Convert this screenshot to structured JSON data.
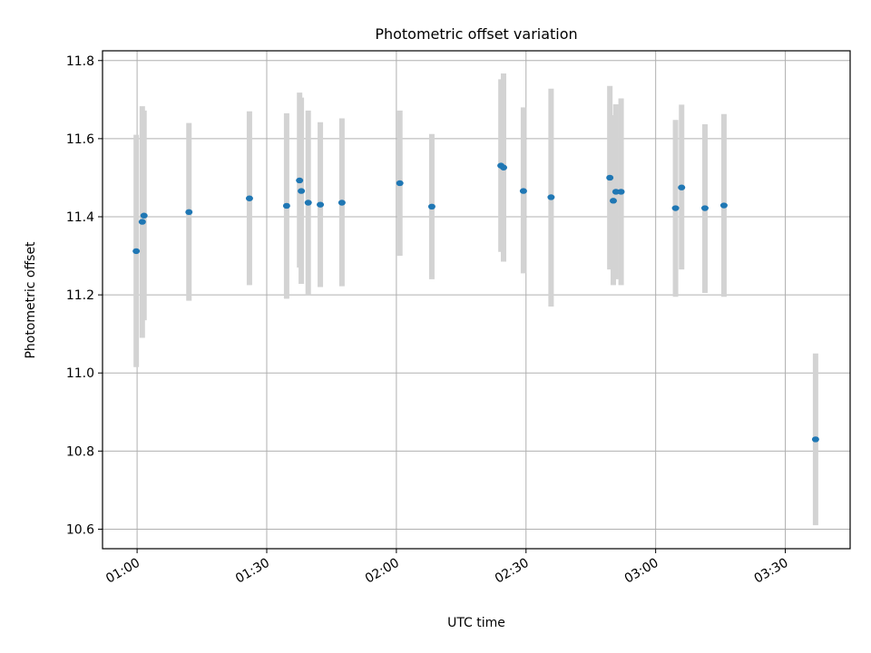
{
  "chart_data": {
    "type": "scatter",
    "title": "Photometric offset variation",
    "xlabel": "UTC time",
    "ylabel": "Photometric offset",
    "x_axis_type": "time",
    "xlim": [
      "00:52",
      "03:45"
    ],
    "ylim": [
      10.55,
      11.825
    ],
    "x_ticks": [
      "01:00",
      "01:30",
      "02:00",
      "02:30",
      "03:00",
      "03:30"
    ],
    "y_ticks": [
      10.6,
      10.8,
      11.0,
      11.2,
      11.4,
      11.6,
      11.8
    ],
    "y_tick_labels": [
      "10.6",
      "10.8",
      "11.0",
      "11.2",
      "11.4",
      "11.6",
      "11.8"
    ],
    "grid": true,
    "legend": "none",
    "colors": {
      "point": "#1f77b4",
      "error_bar": "#d3d3d3",
      "grid": "#b0b0b0"
    },
    "points": [
      {
        "x": "00:59:48",
        "y": 11.312,
        "err_low": 11.015,
        "err_high": 11.61
      },
      {
        "x": "01:01:12",
        "y": 11.387,
        "err_low": 11.09,
        "err_high": 11.683
      },
      {
        "x": "01:01:36",
        "y": 11.403,
        "err_low": 11.135,
        "err_high": 11.672
      },
      {
        "x": "01:12:00",
        "y": 11.412,
        "err_low": 11.185,
        "err_high": 11.64
      },
      {
        "x": "01:26:00",
        "y": 11.447,
        "err_low": 11.225,
        "err_high": 11.67
      },
      {
        "x": "01:34:36",
        "y": 11.428,
        "err_low": 11.19,
        "err_high": 11.665
      },
      {
        "x": "01:37:36",
        "y": 11.493,
        "err_low": 11.27,
        "err_high": 11.718
      },
      {
        "x": "01:38:00",
        "y": 11.466,
        "err_low": 11.228,
        "err_high": 11.705
      },
      {
        "x": "01:39:36",
        "y": 11.436,
        "err_low": 11.2,
        "err_high": 11.672
      },
      {
        "x": "01:42:24",
        "y": 11.431,
        "err_low": 11.22,
        "err_high": 11.642
      },
      {
        "x": "01:47:24",
        "y": 11.436,
        "err_low": 11.222,
        "err_high": 11.652
      },
      {
        "x": "02:00:48",
        "y": 11.486,
        "err_low": 11.3,
        "err_high": 11.672
      },
      {
        "x": "02:08:12",
        "y": 11.426,
        "err_low": 11.24,
        "err_high": 11.612
      },
      {
        "x": "02:24:12",
        "y": 11.531,
        "err_low": 11.31,
        "err_high": 11.752
      },
      {
        "x": "02:24:48",
        "y": 11.526,
        "err_low": 11.285,
        "err_high": 11.767
      },
      {
        "x": "02:29:24",
        "y": 11.466,
        "err_low": 11.255,
        "err_high": 11.68
      },
      {
        "x": "02:35:48",
        "y": 11.45,
        "err_low": 11.17,
        "err_high": 11.728
      },
      {
        "x": "02:49:24",
        "y": 11.5,
        "err_low": 11.265,
        "err_high": 11.735
      },
      {
        "x": "02:50:12",
        "y": 11.441,
        "err_low": 11.225,
        "err_high": 11.66
      },
      {
        "x": "02:50:48",
        "y": 11.464,
        "err_low": 11.24,
        "err_high": 11.688
      },
      {
        "x": "02:52:00",
        "y": 11.464,
        "err_low": 11.225,
        "err_high": 11.703
      },
      {
        "x": "03:04:36",
        "y": 11.422,
        "err_low": 11.195,
        "err_high": 11.648
      },
      {
        "x": "03:06:00",
        "y": 11.475,
        "err_low": 11.265,
        "err_high": 11.687
      },
      {
        "x": "03:11:24",
        "y": 11.422,
        "err_low": 11.205,
        "err_high": 11.637
      },
      {
        "x": "03:15:48",
        "y": 11.429,
        "err_low": 11.195,
        "err_high": 11.663
      },
      {
        "x": "03:37:00",
        "y": 10.83,
        "err_low": 10.61,
        "err_high": 11.05
      }
    ]
  }
}
